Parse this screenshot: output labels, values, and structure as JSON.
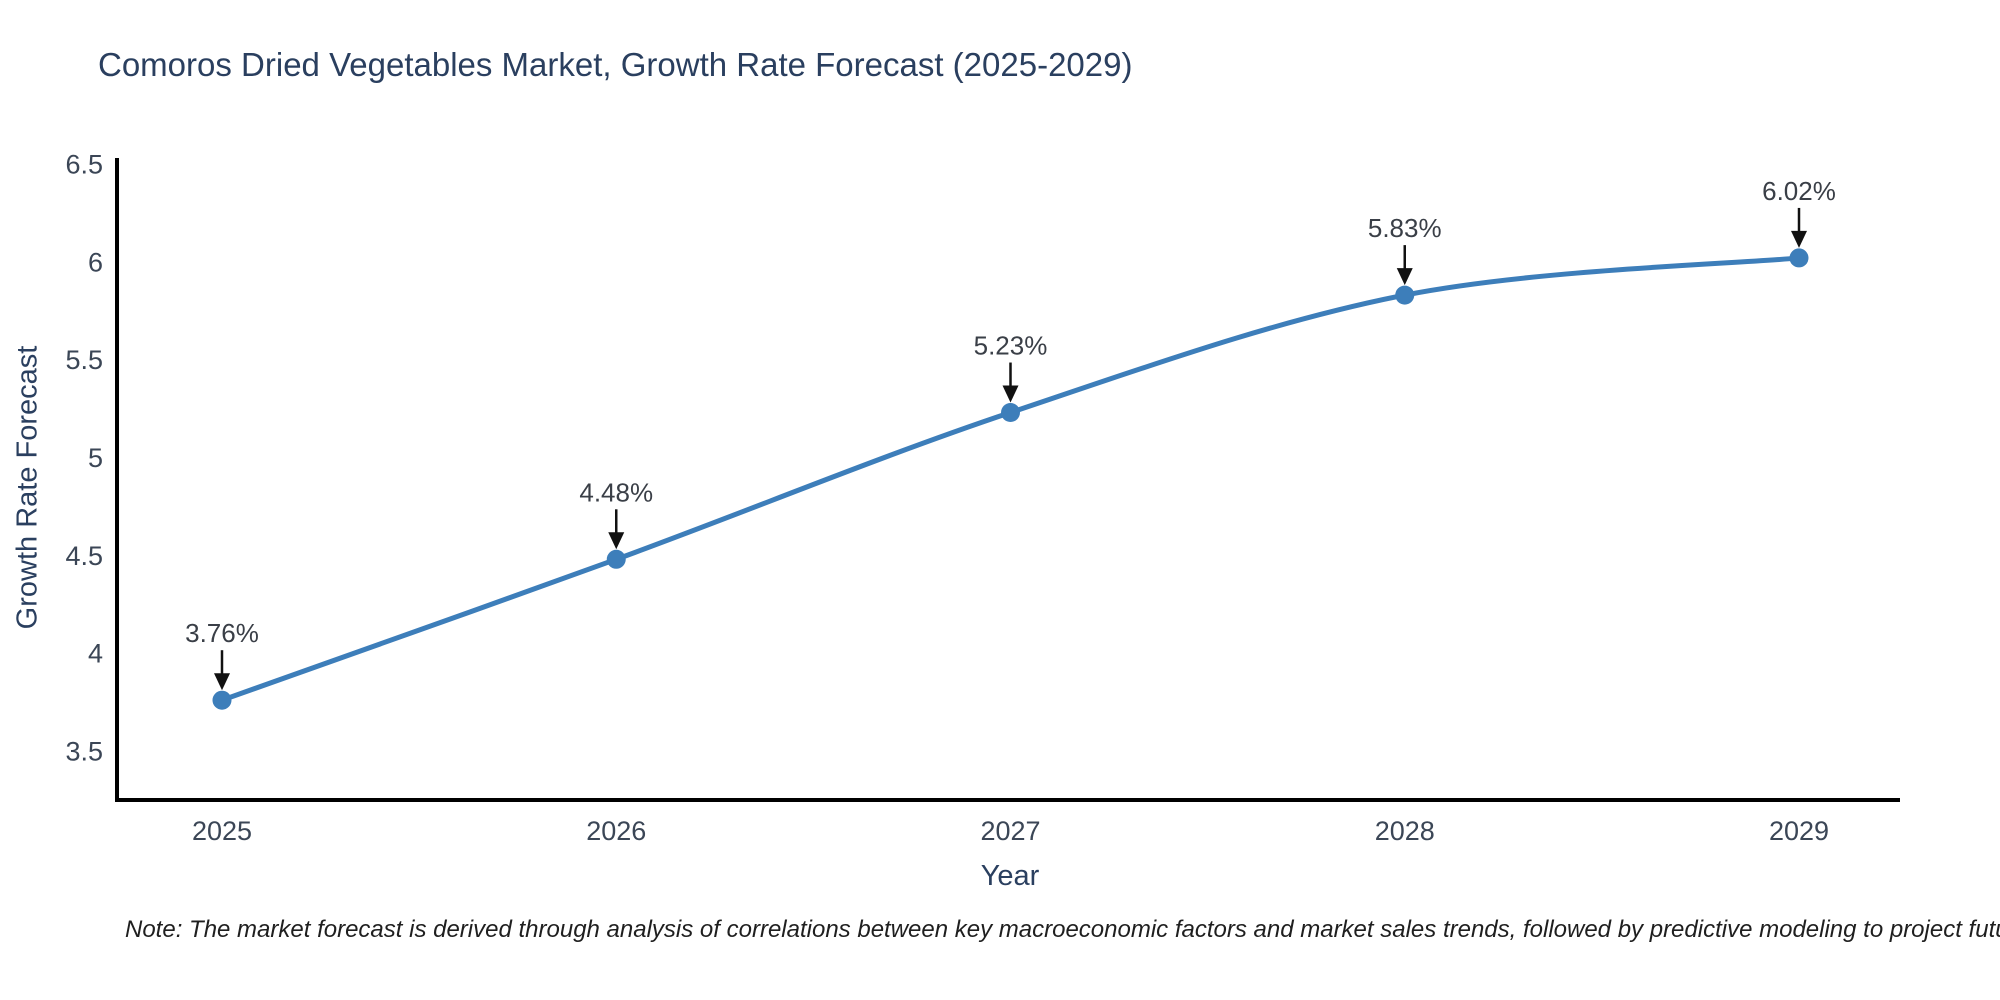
{
  "title": "Comoros Dried Vegetables Market, Growth Rate Forecast (2025-2029)",
  "note": {
    "text": "Note: The market forecast is derived through analysis of correlations between key macroeconomic factors and market sales trends, followed by predictive modeling to project future sales"
  },
  "chart_data": {
    "type": "line",
    "title": "Comoros Dried Vegetables Market, Growth Rate Forecast (2025-2029)",
    "xlabel": "Year",
    "ylabel": "Growth Rate Forecast",
    "categories": [
      "2025",
      "2026",
      "2027",
      "2028",
      "2029"
    ],
    "values": [
      3.76,
      4.48,
      5.23,
      5.83,
      6.02
    ],
    "point_labels": [
      "3.76%",
      "4.48%",
      "5.23%",
      "5.83%",
      "6.02%"
    ],
    "y_ticks": [
      3.5,
      4,
      4.5,
      5,
      5.5,
      6,
      6.5
    ],
    "ylim": [
      3.25,
      6.5
    ],
    "grid": false,
    "legend": "none",
    "curve": "spline",
    "colors": {
      "line": "#3d7eba",
      "marker": "#3d7eba",
      "axis": "#000000",
      "arrow": "#111111",
      "annotation_text": "#3a3f47",
      "tick_text": "#3b4656",
      "title_text": "#2a3f5f"
    }
  }
}
